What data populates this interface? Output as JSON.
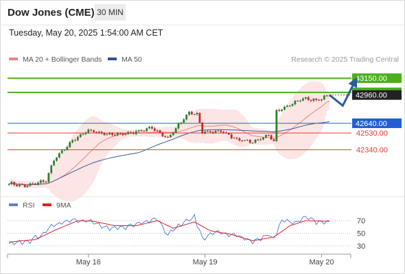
{
  "header": {
    "title": "Dow Jones (CME)",
    "timeframe": "30 MIN",
    "datetime": "Tuesday, May 20, 2025 1:54:00 AM CET"
  },
  "legend": {
    "items": [
      {
        "label": "MA 20 + Bollinger Bands",
        "color": "#f08080"
      },
      {
        "label": "MA 50",
        "color": "#2c4f8f"
      }
    ],
    "watermark": "Research © 2025 Trading Central"
  },
  "colors": {
    "up": "#2e7d32",
    "down": "#c62828",
    "resistance": "#4caf1a",
    "support": "#e53935",
    "pivot": "#1f5fd6",
    "arrow": "#2c5aa0",
    "band": "#fde0e0",
    "ma20": "#f08080",
    "ma50": "#3b5a99",
    "rsi": "#5b7fd6",
    "rsi_ma": "#e02020"
  },
  "chart_data": [
    {
      "type": "candlestick",
      "ylim": [
        41880,
        43260
      ],
      "x_ticks": [
        "May 16",
        "May 19",
        "May 20"
      ],
      "levels": [
        {
          "label": "43150.00",
          "value": 43150,
          "kind": "resistance"
        },
        {
          "label": "42990.00",
          "value": 42990,
          "kind": "resistance"
        },
        {
          "label": "42960.00",
          "value": 42960,
          "kind": "last"
        },
        {
          "label": "42640.00",
          "value": 42640,
          "kind": "pivot"
        },
        {
          "label": "42530.00",
          "value": 42530,
          "kind": "support"
        },
        {
          "label": "42340.00",
          "value": 42340,
          "kind": "support"
        }
      ],
      "anchors": [
        {
          "i": 0,
          "v": 41960
        },
        {
          "i": 6,
          "v": 41930
        },
        {
          "i": 14,
          "v": 41990
        },
        {
          "i": 17,
          "v": 42230
        },
        {
          "i": 24,
          "v": 42440
        },
        {
          "i": 30,
          "v": 42560
        },
        {
          "i": 38,
          "v": 42510
        },
        {
          "i": 46,
          "v": 42530
        },
        {
          "i": 54,
          "v": 42590
        },
        {
          "i": 60,
          "v": 42470
        },
        {
          "i": 64,
          "v": 42620
        },
        {
          "i": 68,
          "v": 42760
        },
        {
          "i": 71,
          "v": 42740
        },
        {
          "i": 73,
          "v": 42540
        },
        {
          "i": 80,
          "v": 42550
        },
        {
          "i": 86,
          "v": 42460
        },
        {
          "i": 92,
          "v": 42430
        },
        {
          "i": 98,
          "v": 42500
        },
        {
          "i": 100,
          "v": 42430
        },
        {
          "i": 101,
          "v": 42780
        },
        {
          "i": 106,
          "v": 42850
        },
        {
          "i": 111,
          "v": 42920
        },
        {
          "i": 116,
          "v": 42900
        },
        {
          "i": 121,
          "v": 42960
        }
      ],
      "projection": [
        {
          "i": 121,
          "v": 42960
        },
        {
          "i": 126,
          "v": 42840
        },
        {
          "i": 131,
          "v": 43140
        }
      ]
    },
    {
      "type": "line",
      "series": [
        {
          "name": "RSI",
          "anchors": [
            {
              "i": 0,
              "v": 32
            },
            {
              "i": 8,
              "v": 38
            },
            {
              "i": 14,
              "v": 52
            },
            {
              "i": 17,
              "v": 64
            },
            {
              "i": 24,
              "v": 72
            },
            {
              "i": 30,
              "v": 70
            },
            {
              "i": 38,
              "v": 56
            },
            {
              "i": 46,
              "v": 62
            },
            {
              "i": 52,
              "v": 70
            },
            {
              "i": 56,
              "v": 74
            },
            {
              "i": 60,
              "v": 48
            },
            {
              "i": 64,
              "v": 62
            },
            {
              "i": 70,
              "v": 76
            },
            {
              "i": 73,
              "v": 42
            },
            {
              "i": 78,
              "v": 52
            },
            {
              "i": 86,
              "v": 46
            },
            {
              "i": 92,
              "v": 35
            },
            {
              "i": 98,
              "v": 48
            },
            {
              "i": 100,
              "v": 40
            },
            {
              "i": 103,
              "v": 70
            },
            {
              "i": 108,
              "v": 68
            },
            {
              "i": 112,
              "v": 75
            },
            {
              "i": 116,
              "v": 68
            },
            {
              "i": 121,
              "v": 68
            }
          ]
        },
        {
          "name": "9MA",
          "anchors": [
            {
              "i": 0,
              "v": 36
            },
            {
              "i": 10,
              "v": 40
            },
            {
              "i": 18,
              "v": 56
            },
            {
              "i": 26,
              "v": 70
            },
            {
              "i": 32,
              "v": 69
            },
            {
              "i": 40,
              "v": 62
            },
            {
              "i": 48,
              "v": 62
            },
            {
              "i": 56,
              "v": 70
            },
            {
              "i": 62,
              "v": 58
            },
            {
              "i": 70,
              "v": 68
            },
            {
              "i": 76,
              "v": 54
            },
            {
              "i": 84,
              "v": 48
            },
            {
              "i": 92,
              "v": 38
            },
            {
              "i": 100,
              "v": 44
            },
            {
              "i": 106,
              "v": 62
            },
            {
              "i": 112,
              "v": 70
            },
            {
              "i": 121,
              "v": 69
            }
          ]
        }
      ],
      "legend": [
        "RSI",
        "9MA"
      ],
      "ylim": [
        20,
        80
      ],
      "y_ticks": [
        70,
        50,
        30
      ]
    }
  ]
}
